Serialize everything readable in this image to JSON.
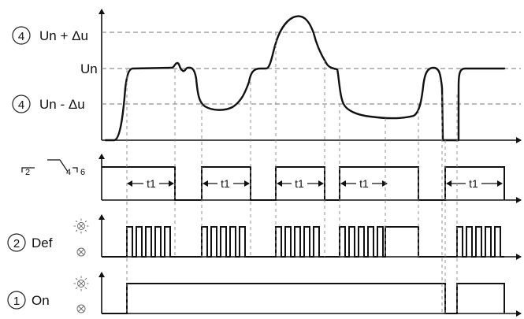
{
  "voltage_levels": {
    "upper_marker": "4",
    "upper_label": "Un + Δu",
    "nominal_label": "Un",
    "lower_marker": "4",
    "lower_label": "Un - Δu"
  },
  "relay_contacts": {
    "c2": "2",
    "c4": "4",
    "c6": "6"
  },
  "timer_label": "t1",
  "def_row": {
    "marker": "2",
    "label": "Def"
  },
  "on_row": {
    "marker": "1",
    "label": "On"
  },
  "icons": {
    "lamp_lit": "led-lit-icon",
    "lamp_off": "led-off-icon"
  }
}
